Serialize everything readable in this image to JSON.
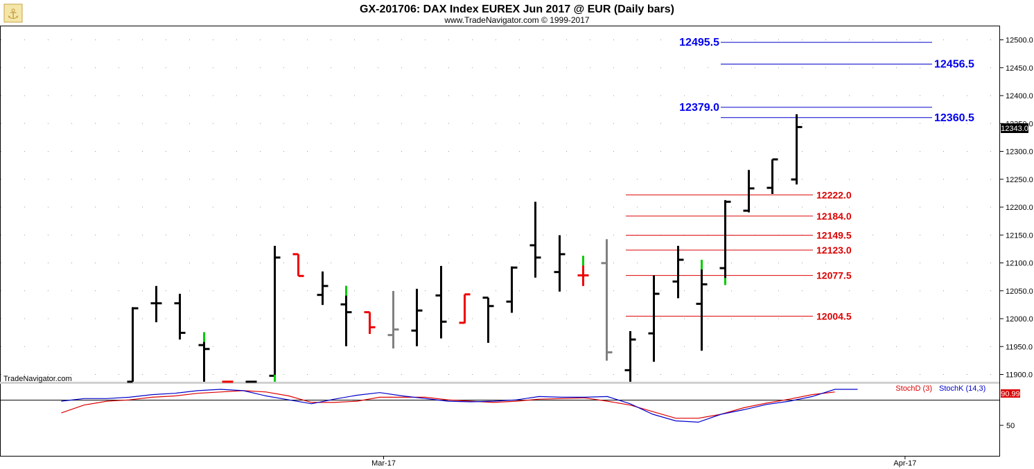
{
  "header": {
    "title": "GX-201706:  DAX Index EUREX Jun 2017 @ EUR  (Daily bars)",
    "subtitle": "www.TradeNavigator.com © 1999-2017"
  },
  "watermark": "TradeNavigator.com",
  "price_badge": "12343.0",
  "indicator_badge": "90.99",
  "indicator_legend": {
    "stoch_d": "StochD (3)",
    "stoch_k": "StochK (14,3)"
  },
  "indicator_tick": "50",
  "colors": {
    "up_bar": "#000000",
    "down_bar": "#ee0000",
    "neutral_bar": "#808080",
    "high_marker": "#00cc00",
    "blue_level": "#0000cc",
    "red_level": "#dd0000",
    "stoch_k": "#0000cc",
    "stoch_d": "#dd0000"
  },
  "chart_data": {
    "type": "ohlc",
    "x_labels": [
      {
        "index": 10.6,
        "label": "Mar-17"
      },
      {
        "index": 32.6,
        "label": "Apr-17"
      }
    ],
    "ylim": [
      11875,
      12525
    ],
    "y_ticks": [
      "11900.0",
      "11950.0",
      "12000.0",
      "12050.0",
      "12100.0",
      "12150.0",
      "12200.0",
      "12250.0",
      "12300.0",
      "12350.0",
      "12400.0",
      "12450.0",
      "12500.0"
    ],
    "bars": [
      {
        "o": 11875,
        "h": 12020,
        "l": 11875,
        "c": 12018,
        "color": "black"
      },
      {
        "o": 12027,
        "h": 12058,
        "l": 11993,
        "c": 12027,
        "color": "black"
      },
      {
        "o": 12027,
        "h": 12044,
        "l": 11962,
        "c": 11974,
        "color": "black"
      },
      {
        "o": 11952,
        "h": 11975,
        "l": 11875,
        "c": 11945,
        "color": "black",
        "hi_mark": 11975
      },
      {
        "o": 11878,
        "h": 11880,
        "l": 11876,
        "c": 11878,
        "color": "red"
      },
      {
        "o": 11875,
        "h": 11875,
        "l": 11875,
        "c": 11875,
        "color": "black"
      },
      {
        "o": 11897,
        "h": 12130,
        "l": 11875,
        "c": 12109,
        "color": "black",
        "lo_mark": 11878
      },
      {
        "o": 12115,
        "h": 12115,
        "l": 12076,
        "c": 12076,
        "color": "red"
      },
      {
        "o": 12042,
        "h": 12084,
        "l": 12024,
        "c": 12058,
        "color": "black"
      },
      {
        "o": 12025,
        "h": 12058,
        "l": 11950,
        "c": 12011,
        "color": "black",
        "hi_mark": 12058
      },
      {
        "o": 12011,
        "h": 12011,
        "l": 11972,
        "c": 11984,
        "color": "red"
      },
      {
        "o": 11970,
        "h": 12049,
        "l": 11946,
        "c": 11980,
        "color": "gray"
      },
      {
        "o": 11978,
        "h": 12053,
        "l": 11950,
        "c": 12014,
        "color": "black"
      },
      {
        "o": 12041,
        "h": 12094,
        "l": 11964,
        "c": 11994,
        "color": "black"
      },
      {
        "o": 11992,
        "h": 12043,
        "l": 11991,
        "c": 12043,
        "color": "red"
      },
      {
        "o": 12037,
        "h": 12037,
        "l": 11956,
        "c": 12022,
        "color": "black"
      },
      {
        "o": 12030,
        "h": 12093,
        "l": 12010,
        "c": 12091,
        "color": "black"
      },
      {
        "o": 12131,
        "h": 12209,
        "l": 12073,
        "c": 12109,
        "color": "black"
      },
      {
        "o": 12083,
        "h": 12149,
        "l": 12048,
        "c": 12115,
        "color": "black"
      },
      {
        "o": 12077,
        "h": 12112,
        "l": 12058,
        "c": 12077,
        "color": "red",
        "hi_mark": 12112
      },
      {
        "o": 12099,
        "h": 12142,
        "l": 11924,
        "c": 11939,
        "color": "gray"
      },
      {
        "o": 11907,
        "h": 11977,
        "l": 11875,
        "c": 11962,
        "color": "black"
      },
      {
        "o": 11973,
        "h": 12077,
        "l": 11922,
        "c": 12044,
        "color": "black"
      },
      {
        "o": 12066,
        "h": 12130,
        "l": 12036,
        "c": 12105,
        "color": "black"
      },
      {
        "o": 12026,
        "h": 12105,
        "l": 11942,
        "c": 12061,
        "color": "black",
        "hi_mark": 12105
      },
      {
        "o": 12090,
        "h": 12212,
        "l": 12060,
        "c": 12209,
        "color": "black",
        "lo_mark": 12060
      },
      {
        "o": 12193,
        "h": 12266,
        "l": 12190,
        "c": 12233,
        "color": "black"
      },
      {
        "o": 12234,
        "h": 12285,
        "l": 12223,
        "c": 12285,
        "color": "black"
      },
      {
        "o": 12249,
        "h": 12366,
        "l": 12240,
        "c": 12343,
        "color": "black"
      }
    ],
    "levels": [
      {
        "value": 12495.5,
        "label": "12495.5",
        "color": "blue",
        "label_side": "left"
      },
      {
        "value": 12456.5,
        "label": "12456.5",
        "color": "blue",
        "label_side": "right"
      },
      {
        "value": 12379.0,
        "label": "12379.0",
        "color": "blue",
        "label_side": "left"
      },
      {
        "value": 12360.5,
        "label": "12360.5",
        "color": "blue",
        "label_side": "right"
      },
      {
        "value": 12222.0,
        "label": "12222.0",
        "color": "red",
        "label_side": "right"
      },
      {
        "value": 12184.0,
        "label": "12184.0",
        "color": "red",
        "label_side": "right"
      },
      {
        "value": 12149.5,
        "label": "12149.5",
        "color": "red",
        "label_side": "right"
      },
      {
        "value": 12123.0,
        "label": "12123.0",
        "color": "red",
        "label_side": "right"
      },
      {
        "value": 12077.5,
        "label": "12077.5",
        "color": "red",
        "label_side": "right"
      },
      {
        "value": 12004.5,
        "label": "12004.5",
        "color": "red",
        "label_side": "right"
      }
    ],
    "stochastic": {
      "ylim": [
        0,
        100
      ],
      "ref_line": 80,
      "k": [
        78,
        82,
        82,
        84,
        88,
        90,
        94,
        96,
        94,
        86,
        80,
        74,
        81,
        87,
        91,
        86,
        82,
        78,
        77,
        78,
        80,
        85,
        84,
        84,
        85,
        74,
        58,
        48,
        46,
        58,
        65,
        73,
        78,
        85,
        96,
        96
      ],
      "d": [
        60,
        72,
        78,
        80,
        84,
        86,
        90,
        92,
        94,
        92,
        86,
        76,
        76,
        78,
        84,
        84,
        84,
        80,
        78,
        76,
        78,
        81,
        82,
        83,
        78,
        72,
        62,
        52,
        52,
        58,
        68,
        75,
        81,
        88,
        92
      ],
      "x0": -3,
      "dx": 0.96
    },
    "grid": "dotted",
    "title": "GX-201706:  DAX Index EUREX Jun 2017 @ EUR  (Daily bars)"
  }
}
